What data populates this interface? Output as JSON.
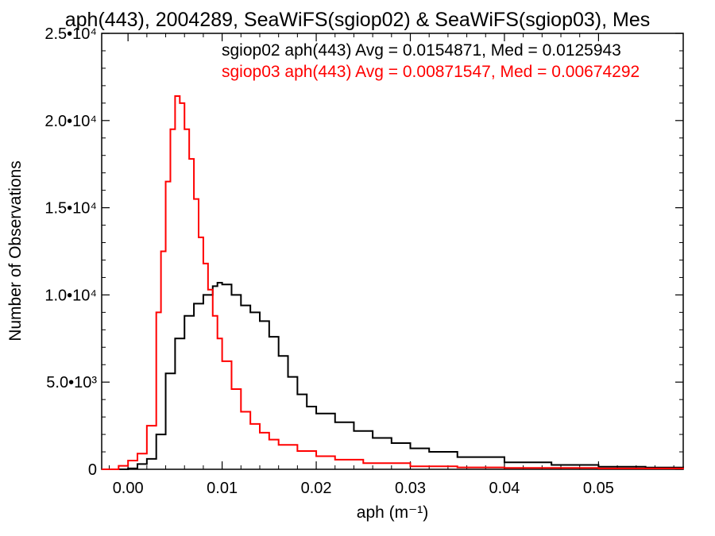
{
  "chart_data": {
    "type": "line",
    "title": "aph(443), 2004289, SeaWiFS(sgiop02) & SeaWiFS(sgiop03), Mes",
    "xlabel": "aph (m⁻¹)",
    "ylabel": "Number of Observations",
    "xlim": [
      -0.0028,
      0.059
    ],
    "ylim": [
      0,
      25000
    ],
    "x_ticks": [
      {
        "value": 0.0,
        "label": "0.00"
      },
      {
        "value": 0.01,
        "label": "0.01"
      },
      {
        "value": 0.02,
        "label": "0.02"
      },
      {
        "value": 0.03,
        "label": "0.03"
      },
      {
        "value": 0.04,
        "label": "0.04"
      },
      {
        "value": 0.05,
        "label": "0.05"
      }
    ],
    "y_ticks": [
      {
        "value": 0,
        "label": "0"
      },
      {
        "value": 5000,
        "label": "5.0•10³"
      },
      {
        "value": 10000,
        "label": "1.0•10⁴"
      },
      {
        "value": 15000,
        "label": "1.5•10⁴"
      },
      {
        "value": 20000,
        "label": "2.0•10⁴"
      },
      {
        "value": 25000,
        "label": "2.5•10⁴"
      }
    ],
    "grid": false,
    "step": true,
    "annotations": [
      {
        "text": "sgiop02 aph(443) Avg = 0.0154871, Med = 0.0125943",
        "color": "#000000"
      },
      {
        "text": "sgiop03 aph(443) Avg = 0.00871547, Med = 0.00674292",
        "color": "#ff0000"
      }
    ],
    "series": [
      {
        "color": "#000000",
        "x": [
          -0.0028,
          0.0,
          0.001,
          0.002,
          0.003,
          0.004,
          0.005,
          0.006,
          0.007,
          0.008,
          0.009,
          0.0095,
          0.01,
          0.011,
          0.012,
          0.013,
          0.014,
          0.015,
          0.016,
          0.017,
          0.018,
          0.019,
          0.02,
          0.022,
          0.024,
          0.026,
          0.028,
          0.03,
          0.032,
          0.035,
          0.04,
          0.045,
          0.05,
          0.055,
          0.059
        ],
        "y": [
          0,
          50,
          300,
          600,
          2000,
          5500,
          7500,
          8800,
          9500,
          10000,
          10500,
          10700,
          10600,
          10000,
          9400,
          9000,
          8500,
          7600,
          6500,
          5300,
          4300,
          3600,
          3200,
          2700,
          2200,
          1800,
          1500,
          1200,
          1000,
          700,
          400,
          250,
          150,
          100,
          60
        ]
      },
      {
        "color": "#ff0000",
        "x": [
          -0.0028,
          -0.001,
          0.0,
          0.001,
          0.002,
          0.003,
          0.0035,
          0.004,
          0.0045,
          0.005,
          0.0055,
          0.006,
          0.0065,
          0.007,
          0.0075,
          0.008,
          0.0085,
          0.009,
          0.0095,
          0.01,
          0.011,
          0.012,
          0.013,
          0.014,
          0.015,
          0.016,
          0.018,
          0.02,
          0.022,
          0.025,
          0.03,
          0.035,
          0.04,
          0.05,
          0.059
        ],
        "y": [
          0,
          200,
          500,
          900,
          2500,
          9000,
          12500,
          16500,
          19500,
          21400,
          21000,
          19500,
          17800,
          15500,
          13300,
          11800,
          10300,
          8800,
          7500,
          6200,
          4600,
          3300,
          2600,
          2100,
          1700,
          1400,
          1050,
          750,
          550,
          350,
          170,
          110,
          80,
          50,
          20
        ]
      }
    ]
  }
}
